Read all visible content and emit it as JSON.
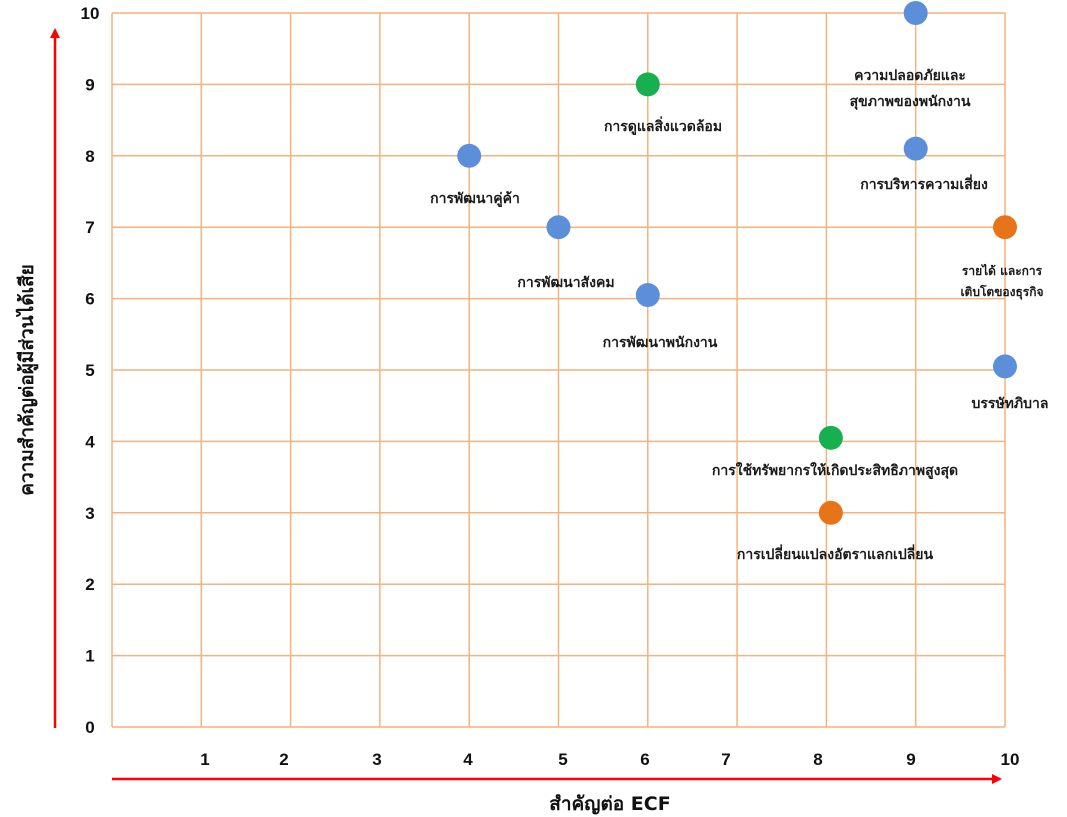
{
  "chart_data": {
    "type": "scatter",
    "title": "",
    "xlabel": "สำคัญต่อ ECF",
    "ylabel": "ความสำคัญต่อผู้มีส่วนได้เสีย",
    "xlim": [
      0,
      10
    ],
    "ylim": [
      0,
      10
    ],
    "x_ticks": [
      "1",
      "2",
      "3",
      "4",
      "5",
      "6",
      "7",
      "8",
      "9",
      "10"
    ],
    "y_ticks": [
      "0",
      "1",
      "2",
      "3",
      "4",
      "5",
      "6",
      "7",
      "8",
      "9",
      "10"
    ],
    "grid": true,
    "colors": {
      "grid": "#f5b27a",
      "axis_arrow": "#ff0000",
      "blue": "#5b8fd9",
      "green": "#17b050",
      "orange": "#e8741a"
    },
    "points": [
      {
        "x": 9.0,
        "y": 10.0,
        "color": "blue",
        "label_lines": [
          "ความปลอดภัยและ",
          "สุขภาพของพนักงาน"
        ]
      },
      {
        "x": 6.0,
        "y": 9.0,
        "color": "green",
        "label_lines": [
          "การดูแลสิ่งแวดล้อม"
        ]
      },
      {
        "x": 4.0,
        "y": 8.0,
        "color": "blue",
        "label_lines": [
          "การพัฒนาคู่ค้า"
        ]
      },
      {
        "x": 9.0,
        "y": 8.1,
        "color": "blue",
        "label_lines": [
          "การบริหารความเสี่ยง"
        ]
      },
      {
        "x": 5.0,
        "y": 7.0,
        "color": "blue",
        "label_lines": [
          "การพัฒนาสังคม"
        ]
      },
      {
        "x": 10.0,
        "y": 7.0,
        "color": "orange",
        "label_lines": [
          "รายได้ และการ",
          "เติบโตของธุรกิจ"
        ]
      },
      {
        "x": 6.0,
        "y": 6.05,
        "color": "blue",
        "label_lines": [
          "การพัฒนาพนักงาน"
        ]
      },
      {
        "x": 10.0,
        "y": 5.05,
        "color": "blue",
        "label_lines": [
          "บรรษัทภิบาล"
        ]
      },
      {
        "x": 8.05,
        "y": 4.05,
        "color": "green",
        "label_lines": [
          "การใช้ทรัพยากรให้เกิดประสิทธิภาพสูงสุด"
        ]
      },
      {
        "x": 8.05,
        "y": 3.0,
        "color": "orange",
        "label_lines": [
          "การเปลี่ยนแปลงอัตราแลกเปลี่ยน"
        ]
      }
    ]
  }
}
